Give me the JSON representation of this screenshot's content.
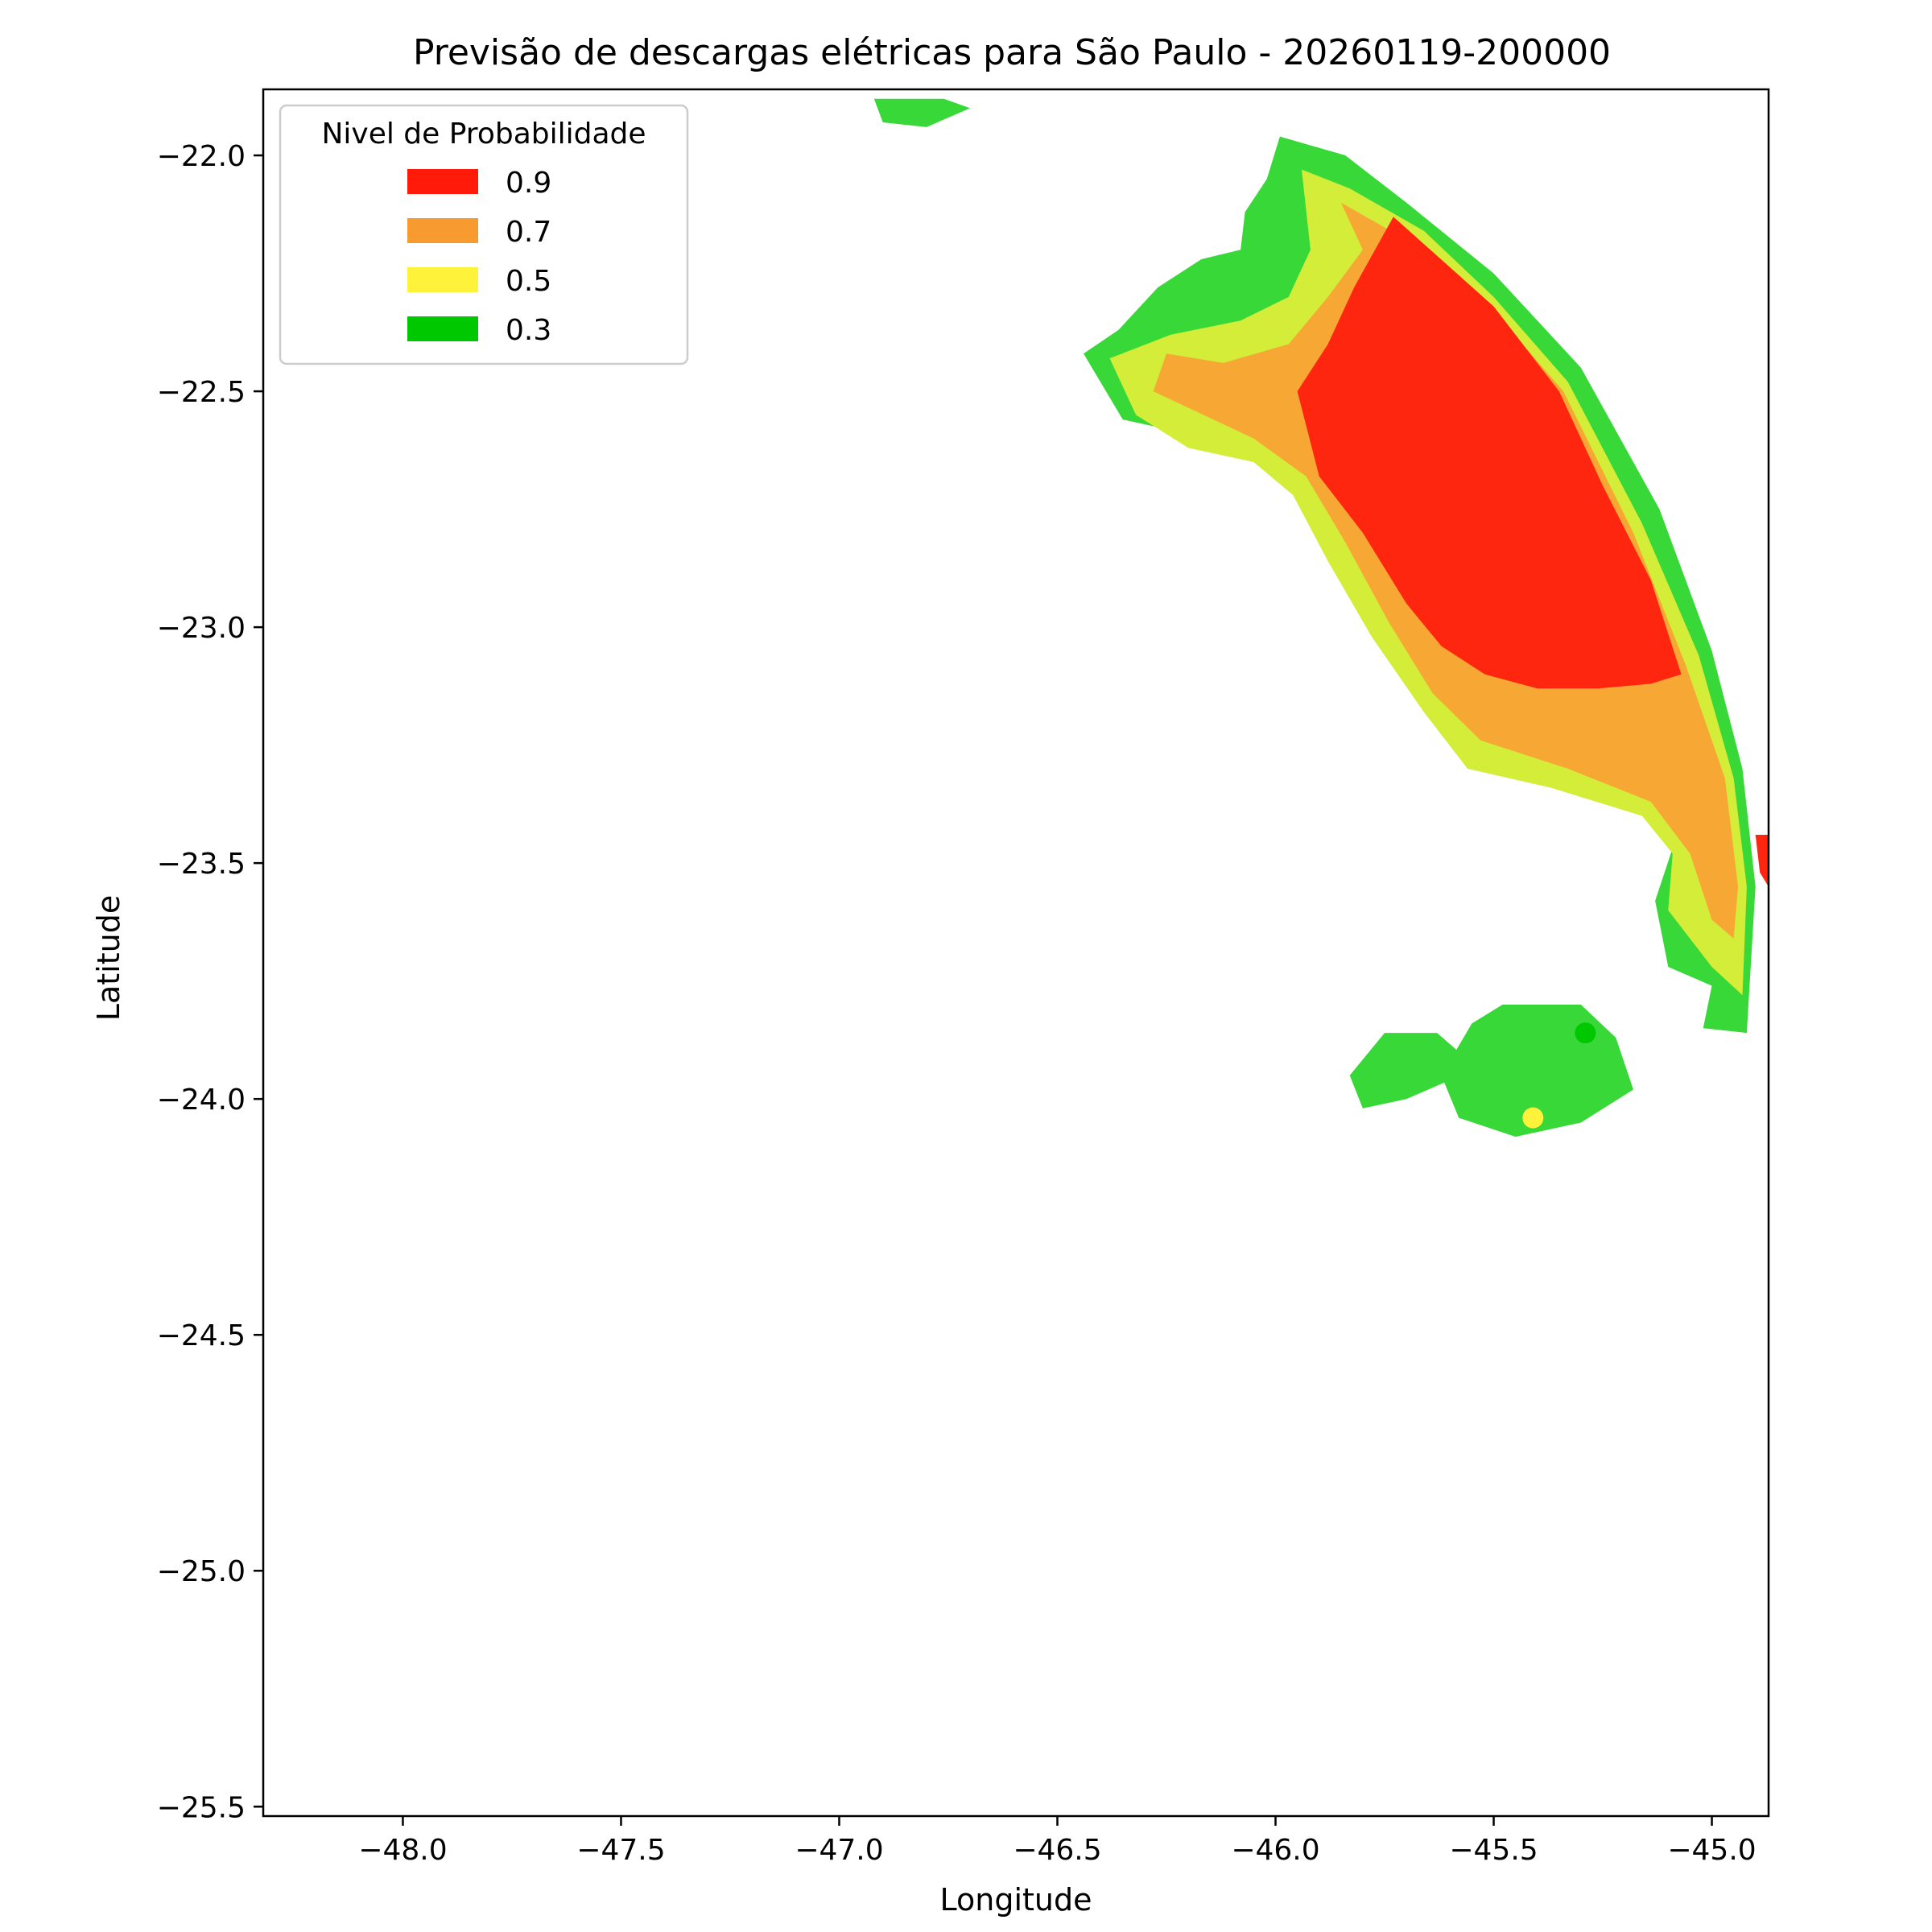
{
  "chart_data": {
    "type": "contour",
    "title": "Previsão de descargas elétricas para São Paulo - 20260119-200000",
    "xlabel": "Longitude",
    "ylabel": "Latitude",
    "xlim": [
      -48.32,
      -44.87
    ],
    "ylim": [
      -25.52,
      -21.86
    ],
    "xticks": [
      -48.0,
      -47.5,
      -47.0,
      -46.5,
      -46.0,
      -45.5,
      -45.0
    ],
    "yticks": [
      -22.0,
      -22.5,
      -23.0,
      -23.5,
      -24.0,
      -24.5,
      -25.0,
      -25.5
    ],
    "xtick_labels": [
      "−48.0",
      "−47.5",
      "−47.0",
      "−46.5",
      "−46.0",
      "−45.5",
      "−45.0"
    ],
    "ytick_labels": [
      "−22.0",
      "−22.5",
      "−23.0",
      "−23.5",
      "−24.0",
      "−24.5",
      "−25.0",
      "−25.5"
    ],
    "grid": false,
    "legend": {
      "title": "Nivel de Probabilidade",
      "placement": "upper-left",
      "entries": [
        {
          "label": "0.9",
          "color": "#ff1a0a"
        },
        {
          "label": "0.7",
          "color": "#f79a30"
        },
        {
          "label": "0.5",
          "color": "#fff23a"
        },
        {
          "label": "0.3",
          "color": "#00c800"
        }
      ]
    },
    "levels": [
      {
        "level": "0.3",
        "color": "#38d838",
        "polygons": [
          [
            [
              -45.99,
              -21.96
            ],
            [
              -45.84,
              -22.0
            ],
            [
              -45.7,
              -22.1
            ],
            [
              -45.5,
              -22.25
            ],
            [
              -45.3,
              -22.45
            ],
            [
              -45.12,
              -22.75
            ],
            [
              -45.0,
              -23.05
            ],
            [
              -44.93,
              -23.3
            ],
            [
              -44.9,
              -23.55
            ],
            [
              -44.92,
              -23.86
            ],
            [
              -45.02,
              -23.85
            ],
            [
              -45.0,
              -23.76
            ],
            [
              -45.1,
              -23.72
            ],
            [
              -45.13,
              -23.58
            ],
            [
              -45.08,
              -23.44
            ],
            [
              -45.2,
              -23.34
            ],
            [
              -45.38,
              -23.3
            ],
            [
              -45.52,
              -23.26
            ],
            [
              -45.62,
              -23.17
            ],
            [
              -45.74,
              -23.02
            ],
            [
              -45.84,
              -22.84
            ],
            [
              -45.9,
              -22.72
            ],
            [
              -45.98,
              -22.62
            ],
            [
              -46.13,
              -22.6
            ],
            [
              -46.25,
              -22.58
            ],
            [
              -46.35,
              -22.56
            ],
            [
              -46.44,
              -22.42
            ],
            [
              -46.36,
              -22.37
            ],
            [
              -46.27,
              -22.28
            ],
            [
              -46.17,
              -22.22
            ],
            [
              -46.08,
              -22.2
            ],
            [
              -46.07,
              -22.12
            ],
            [
              -46.02,
              -22.05
            ]
          ],
          [
            [
              -45.48,
              -23.8
            ],
            [
              -45.3,
              -23.8
            ],
            [
              -45.22,
              -23.87
            ],
            [
              -45.18,
              -23.98
            ],
            [
              -45.3,
              -24.05
            ],
            [
              -45.45,
              -24.08
            ],
            [
              -45.58,
              -24.04
            ],
            [
              -45.62,
              -23.95
            ],
            [
              -45.55,
              -23.84
            ]
          ],
          [
            [
              -45.75,
              -23.86
            ],
            [
              -45.63,
              -23.86
            ],
            [
              -45.58,
              -23.9
            ],
            [
              -45.6,
              -23.96
            ],
            [
              -45.7,
              -24.0
            ],
            [
              -45.8,
              -24.02
            ],
            [
              -45.83,
              -23.95
            ]
          ],
          [
            [
              -46.92,
              -21.88
            ],
            [
              -46.76,
              -21.88
            ],
            [
              -46.7,
              -21.9
            ],
            [
              -46.8,
              -21.94
            ],
            [
              -46.9,
              -21.93
            ]
          ]
        ]
      },
      {
        "level": "0.5",
        "color": "#d4ed38",
        "polygons": [
          [
            [
              -45.94,
              -22.03
            ],
            [
              -45.83,
              -22.07
            ],
            [
              -45.66,
              -22.16
            ],
            [
              -45.5,
              -22.3
            ],
            [
              -45.33,
              -22.48
            ],
            [
              -45.16,
              -22.78
            ],
            [
              -45.03,
              -23.06
            ],
            [
              -44.95,
              -23.32
            ],
            [
              -44.92,
              -23.55
            ],
            [
              -44.93,
              -23.78
            ],
            [
              -45.0,
              -23.72
            ],
            [
              -45.1,
              -23.6
            ],
            [
              -45.09,
              -23.48
            ],
            [
              -45.16,
              -23.4
            ],
            [
              -45.37,
              -23.34
            ],
            [
              -45.56,
              -23.3
            ],
            [
              -45.66,
              -23.18
            ],
            [
              -45.78,
              -23.02
            ],
            [
              -45.88,
              -22.86
            ],
            [
              -45.96,
              -22.72
            ],
            [
              -46.05,
              -22.65
            ],
            [
              -46.2,
              -22.62
            ],
            [
              -46.32,
              -22.55
            ],
            [
              -46.38,
              -22.43
            ],
            [
              -46.24,
              -22.38
            ],
            [
              -46.08,
              -22.35
            ],
            [
              -45.97,
              -22.3
            ],
            [
              -45.92,
              -22.2
            ]
          ]
        ]
      },
      {
        "level": "0.7",
        "color": "#f7a834",
        "polygons": [
          [
            [
              -45.85,
              -22.1
            ],
            [
              -45.66,
              -22.2
            ],
            [
              -45.5,
              -22.33
            ],
            [
              -45.34,
              -22.5
            ],
            [
              -45.18,
              -22.8
            ],
            [
              -45.06,
              -23.08
            ],
            [
              -44.97,
              -23.32
            ],
            [
              -44.94,
              -23.55
            ],
            [
              -44.95,
              -23.66
            ],
            [
              -45.0,
              -23.62
            ],
            [
              -45.05,
              -23.48
            ],
            [
              -45.14,
              -23.37
            ],
            [
              -45.33,
              -23.3
            ],
            [
              -45.53,
              -23.24
            ],
            [
              -45.64,
              -23.14
            ],
            [
              -45.74,
              -22.99
            ],
            [
              -45.84,
              -22.82
            ],
            [
              -45.93,
              -22.68
            ],
            [
              -46.05,
              -22.6
            ],
            [
              -46.28,
              -22.5
            ],
            [
              -46.25,
              -22.42
            ],
            [
              -46.12,
              -22.44
            ],
            [
              -45.97,
              -22.4
            ],
            [
              -45.88,
              -22.3
            ],
            [
              -45.8,
              -22.2
            ]
          ]
        ]
      },
      {
        "level": "0.9",
        "color": "#ff2610",
        "polygons": [
          [
            [
              -45.73,
              -22.13
            ],
            [
              -45.5,
              -22.32
            ],
            [
              -45.35,
              -22.5
            ],
            [
              -45.25,
              -22.7
            ],
            [
              -45.14,
              -22.9
            ],
            [
              -45.07,
              -23.1
            ],
            [
              -45.14,
              -23.12
            ],
            [
              -45.26,
              -23.13
            ],
            [
              -45.4,
              -23.13
            ],
            [
              -45.52,
              -23.1
            ],
            [
              -45.62,
              -23.04
            ],
            [
              -45.7,
              -22.95
            ],
            [
              -45.8,
              -22.8
            ],
            [
              -45.9,
              -22.68
            ],
            [
              -45.95,
              -22.5
            ],
            [
              -45.88,
              -22.4
            ],
            [
              -45.82,
              -22.28
            ]
          ],
          [
            [
              -44.9,
              -23.44
            ],
            [
              -44.87,
              -23.44
            ],
            [
              -44.87,
              -23.55
            ],
            [
              -44.89,
              -23.52
            ]
          ]
        ]
      }
    ],
    "markers": [
      {
        "x": -45.29,
        "y": -23.86,
        "color": "#00c800"
      },
      {
        "x": -45.41,
        "y": -24.04,
        "color": "#fff23a"
      }
    ]
  }
}
